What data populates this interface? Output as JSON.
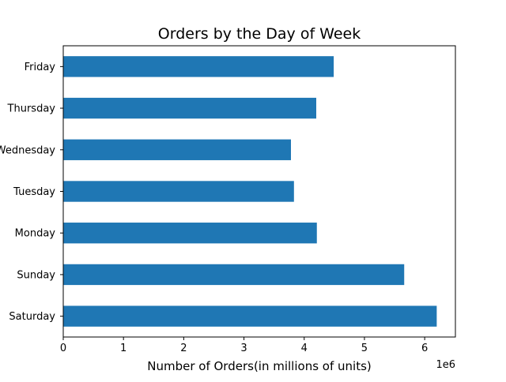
{
  "chart_data": {
    "type": "bar",
    "orientation": "horizontal",
    "title": "Orders by the Day of Week",
    "xlabel": "Number of Orders(in millions of units)",
    "ylabel": "",
    "x_offset_text": "1e6",
    "categories": [
      "Saturday",
      "Sunday",
      "Monday",
      "Tuesday",
      "Wednesday",
      "Thursday",
      "Friday"
    ],
    "values": [
      6200000,
      5660000,
      4210000,
      3830000,
      3780000,
      4200000,
      4490000
    ],
    "xlim": [
      0,
      6510000
    ],
    "xticks": [
      0,
      1000000,
      2000000,
      3000000,
      4000000,
      5000000,
      6000000
    ],
    "xtick_labels": [
      "0",
      "1",
      "2",
      "3",
      "4",
      "5",
      "6"
    ],
    "bar_color": "#1f77b4",
    "grid": false,
    "legend": "none"
  }
}
